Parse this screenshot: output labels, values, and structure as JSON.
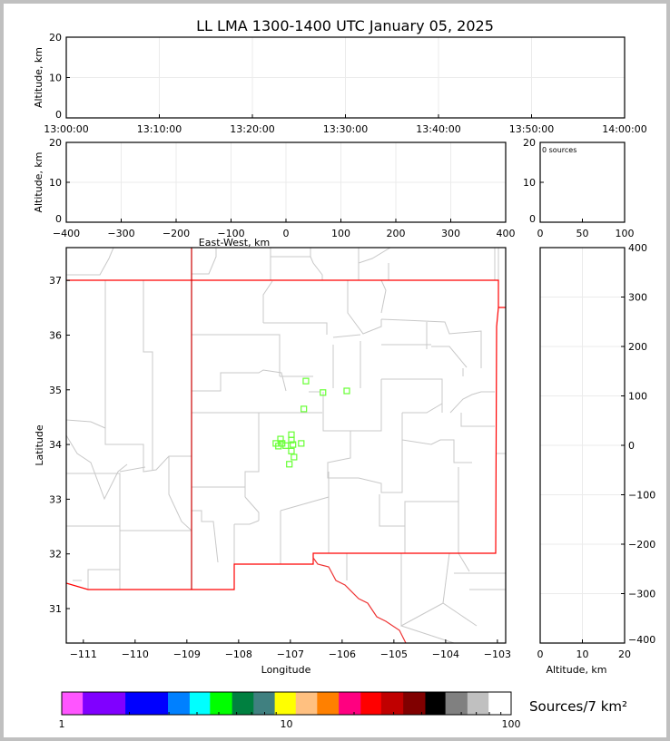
{
  "chart_data": [
    {
      "type": "scatter",
      "panel": "time-altitude",
      "title": "LL LMA 1300-1400 UTC January 05, 2025",
      "ylabel": "Altitude, km",
      "xlim": [
        "13:00:00",
        "14:00:00"
      ],
      "ylim": [
        0,
        20
      ],
      "xticks": [
        "13:00:00",
        "13:10:00",
        "13:20:00",
        "13:30:00",
        "13:40:00",
        "13:50:00",
        "14:00:00"
      ],
      "yticks": [
        0,
        10,
        20
      ],
      "grid": true,
      "points": []
    },
    {
      "type": "scatter",
      "panel": "eastwest-altitude",
      "xlabel": "East-West, km",
      "ylabel": "Altitude, km",
      "xlim": [
        -400,
        400
      ],
      "ylim": [
        0,
        20
      ],
      "xticks": [
        -400,
        -300,
        -200,
        -100,
        0,
        100,
        200,
        300,
        400
      ],
      "yticks": [
        0,
        10,
        20
      ],
      "grid": true,
      "points": []
    },
    {
      "type": "bar",
      "panel": "altitude-histogram",
      "annotation": "0 sources",
      "xlim": [
        0,
        100
      ],
      "ylim": [
        0,
        20
      ],
      "xticks": [
        0,
        50,
        100
      ],
      "yticks": [
        0,
        10,
        20
      ],
      "values": []
    },
    {
      "type": "scatter",
      "panel": "plan-view-map",
      "xlabel": "Longitude",
      "ylabel": "Latitude",
      "xlim": [
        -111.33,
        -102.84
      ],
      "ylim": [
        30.37,
        37.6
      ],
      "xticks": [
        -111,
        -110,
        -109,
        -108,
        -107,
        -106,
        -105,
        -104,
        -103
      ],
      "yticks": [
        31,
        32,
        33,
        34,
        35,
        36,
        37
      ],
      "marker": "open-square",
      "marker_color": "#66ff33",
      "points": [
        {
          "lon": -106.7,
          "lat": 35.16
        },
        {
          "lon": -106.37,
          "lat": 34.95
        },
        {
          "lon": -105.91,
          "lat": 34.98
        },
        {
          "lon": -106.74,
          "lat": 34.65
        },
        {
          "lon": -106.98,
          "lat": 34.18
        },
        {
          "lon": -107.19,
          "lat": 34.1
        },
        {
          "lon": -106.98,
          "lat": 34.08
        },
        {
          "lon": -107.28,
          "lat": 34.02
        },
        {
          "lon": -107.16,
          "lat": 34.02
        },
        {
          "lon": -107.23,
          "lat": 33.97
        },
        {
          "lon": -107.09,
          "lat": 33.98
        },
        {
          "lon": -106.95,
          "lat": 34.0
        },
        {
          "lon": -106.79,
          "lat": 34.02
        },
        {
          "lon": -106.98,
          "lat": 33.88
        },
        {
          "lon": -106.93,
          "lat": 33.77
        },
        {
          "lon": -107.02,
          "lat": 33.64
        }
      ]
    },
    {
      "type": "scatter",
      "panel": "altitude-northsouth",
      "xlabel": "Altitude, km",
      "ylabel": "North-South, km",
      "xlim": [
        0,
        20
      ],
      "ylim": [
        -400,
        400
      ],
      "xticks": [
        0,
        10,
        20
      ],
      "yticks": [
        -400,
        -300,
        -200,
        -100,
        0,
        100,
        200,
        300,
        400
      ],
      "grid": true,
      "points": []
    },
    {
      "type": "colorbar",
      "label": "Sources/7 km²",
      "scale": "log",
      "range": [
        1,
        100
      ],
      "tick_labels": [
        "1",
        "10",
        "100"
      ],
      "bounds": [
        1,
        1.24,
        1.92,
        2.97,
        3.71,
        4.57,
        5.73,
        7.14,
        8.87,
        11.0,
        13.7,
        17.1,
        21.4,
        26.4,
        33.1,
        41.5,
        51.0,
        63.9,
        79.4,
        100
      ],
      "colors": [
        "#ff55ff",
        "#8000ff",
        "#0000ff",
        "#0080ff",
        "#00ffff",
        "#00ff00",
        "#008040",
        "#408080",
        "#ffff00",
        "#ffc080",
        "#ff8000",
        "#ff0080",
        "#ff0000",
        "#c00000",
        "#800000",
        "#000000",
        "#808080",
        "#c0c0c0",
        "#ffffff"
      ]
    }
  ]
}
